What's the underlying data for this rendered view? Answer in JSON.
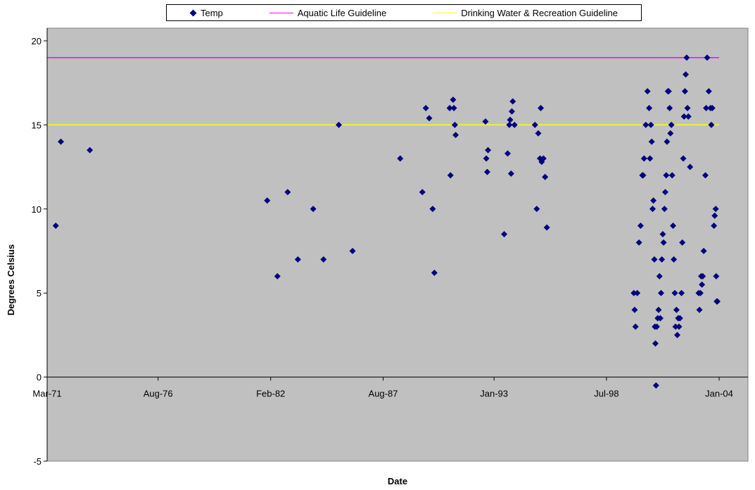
{
  "chart_data": {
    "type": "scatter",
    "title": "",
    "xlabel": "Date",
    "ylabel": "Degrees Celsius",
    "xlim": [
      "1971-03-01",
      "2004-01-01"
    ],
    "ylim": [
      -5,
      20
    ],
    "x_tick_labels": [
      "Mar-71",
      "Aug-76",
      "Feb-82",
      "Aug-87",
      "Jan-93",
      "Jul-98",
      "Jan-04"
    ],
    "x_ticks": [
      "1971-03-01",
      "1976-08-01",
      "1982-02-01",
      "1987-08-01",
      "1993-01-01",
      "1998-07-01",
      "2004-01-01"
    ],
    "y_ticks": [
      -5,
      0,
      5,
      10,
      15,
      20
    ],
    "grid": false,
    "legend_position": "top",
    "plot_background": "#c0c0c0",
    "series": [
      {
        "name": "Temp",
        "kind": "scatter",
        "color": "#000080",
        "points": [
          [
            "1971-08-02",
            9
          ],
          [
            "1971-11-01",
            14
          ],
          [
            "1973-04-01",
            13.5
          ],
          [
            "1981-12-01",
            10.5
          ],
          [
            "1982-06-01",
            6
          ],
          [
            "1982-12-01",
            11
          ],
          [
            "1983-06-01",
            7
          ],
          [
            "1984-03-01",
            10
          ],
          [
            "1984-09-01",
            7
          ],
          [
            "1985-06-01",
            15
          ],
          [
            "1986-02-01",
            7.5
          ],
          [
            "1988-06-01",
            13
          ],
          [
            "1989-07-01",
            11
          ],
          [
            "1989-09-01",
            16
          ],
          [
            "1989-11-01",
            15.4
          ],
          [
            "1990-01-01",
            10
          ],
          [
            "1990-02-01",
            6.2
          ],
          [
            "1990-11-01",
            16
          ],
          [
            "1990-11-15",
            12
          ],
          [
            "1991-01-01",
            16.5
          ],
          [
            "1991-01-15",
            16
          ],
          [
            "1991-02-01",
            15
          ],
          [
            "1991-02-15",
            14.4
          ],
          [
            "1992-08-01",
            15.2
          ],
          [
            "1992-08-15",
            13
          ],
          [
            "1992-09-01",
            12.2
          ],
          [
            "1992-09-15",
            13.5
          ],
          [
            "1993-07-01",
            8.5
          ],
          [
            "1993-09-01",
            13.3
          ],
          [
            "1993-10-01",
            15
          ],
          [
            "1993-10-15",
            15.3
          ],
          [
            "1993-11-01",
            12.1
          ],
          [
            "1993-11-15",
            15.8
          ],
          [
            "1993-12-01",
            16.4
          ],
          [
            "1994-01-01",
            15
          ],
          [
            "1995-01-01",
            15
          ],
          [
            "1995-02-01",
            10
          ],
          [
            "1995-03-01",
            14.5
          ],
          [
            "1995-04-01",
            13
          ],
          [
            "1995-04-15",
            16
          ],
          [
            "1995-05-01",
            12.8
          ],
          [
            "1995-06-01",
            13
          ],
          [
            "1995-07-01",
            11.9
          ],
          [
            "1995-08-01",
            8.9
          ],
          [
            "1999-11-01",
            5
          ],
          [
            "1999-11-15",
            4
          ],
          [
            "1999-12-01",
            3
          ],
          [
            "2000-01-01",
            5
          ],
          [
            "2000-02-01",
            8
          ],
          [
            "2000-03-01",
            9
          ],
          [
            "2000-04-01",
            12
          ],
          [
            "2000-04-15",
            12
          ],
          [
            "2000-05-01",
            13
          ],
          [
            "2000-06-01",
            15
          ],
          [
            "2000-07-01",
            17
          ],
          [
            "2000-08-01",
            16
          ],
          [
            "2000-08-15",
            13
          ],
          [
            "2000-09-01",
            15
          ],
          [
            "2000-09-15",
            14
          ],
          [
            "2000-10-01",
            10
          ],
          [
            "2000-10-15",
            10.5
          ],
          [
            "2000-11-01",
            7
          ],
          [
            "2000-11-10",
            3
          ],
          [
            "2000-11-20",
            2
          ],
          [
            "2000-12-01",
            -0.5
          ],
          [
            "2000-12-15",
            3
          ],
          [
            "2001-01-01",
            3.5
          ],
          [
            "2001-01-15",
            4
          ],
          [
            "2001-02-01",
            6
          ],
          [
            "2001-02-15",
            3.5
          ],
          [
            "2001-03-01",
            5
          ],
          [
            "2001-03-15",
            7
          ],
          [
            "2001-04-01",
            8.5
          ],
          [
            "2001-04-15",
            8
          ],
          [
            "2001-05-01",
            10
          ],
          [
            "2001-05-15",
            11
          ],
          [
            "2001-06-01",
            12
          ],
          [
            "2001-06-15",
            14
          ],
          [
            "2001-07-01",
            17
          ],
          [
            "2001-07-15",
            17
          ],
          [
            "2001-08-01",
            16
          ],
          [
            "2001-08-15",
            14.5
          ],
          [
            "2001-09-01",
            15
          ],
          [
            "2001-09-15",
            12
          ],
          [
            "2001-10-01",
            9
          ],
          [
            "2001-10-15",
            7
          ],
          [
            "2001-11-01",
            5
          ],
          [
            "2001-11-15",
            3
          ],
          [
            "2001-12-01",
            4
          ],
          [
            "2001-12-15",
            2.5
          ],
          [
            "2002-01-01",
            3.5
          ],
          [
            "2002-01-15",
            3
          ],
          [
            "2002-02-01",
            3.5
          ],
          [
            "2002-03-01",
            5
          ],
          [
            "2002-03-15",
            8
          ],
          [
            "2002-04-01",
            13
          ],
          [
            "2002-04-15",
            15.5
          ],
          [
            "2002-05-01",
            17
          ],
          [
            "2002-05-15",
            18
          ],
          [
            "2002-06-01",
            19
          ],
          [
            "2002-06-15",
            16
          ],
          [
            "2002-07-01",
            15.5
          ],
          [
            "2002-08-01",
            12.5
          ],
          [
            "2003-01-01",
            5
          ],
          [
            "2003-01-15",
            4
          ],
          [
            "2003-02-01",
            5
          ],
          [
            "2003-02-15",
            6
          ],
          [
            "2003-03-01",
            5.5
          ],
          [
            "2003-03-15",
            6
          ],
          [
            "2003-04-01",
            7.5
          ],
          [
            "2003-05-01",
            12
          ],
          [
            "2003-05-15",
            16
          ],
          [
            "2003-06-01",
            19
          ],
          [
            "2003-07-01",
            17
          ],
          [
            "2003-08-01",
            16
          ],
          [
            "2003-08-15",
            15
          ],
          [
            "2003-09-01",
            16
          ],
          [
            "2003-10-01",
            9
          ],
          [
            "2003-10-15",
            9.6
          ],
          [
            "2003-11-01",
            10
          ],
          [
            "2003-11-10",
            6
          ],
          [
            "2003-11-20",
            4.5
          ],
          [
            "2003-12-01",
            4.5
          ]
        ]
      },
      {
        "name": "Aquatic Life Guideline",
        "kind": "line",
        "color": "#ff00ff",
        "points": [
          [
            "1971-03-01",
            19
          ],
          [
            "2004-01-01",
            19
          ]
        ]
      },
      {
        "name": "Drinking Water & Recreation Guideline",
        "kind": "line",
        "color": "#ffff00",
        "points": [
          [
            "1971-03-01",
            15
          ],
          [
            "2004-01-01",
            15
          ]
        ]
      }
    ]
  }
}
